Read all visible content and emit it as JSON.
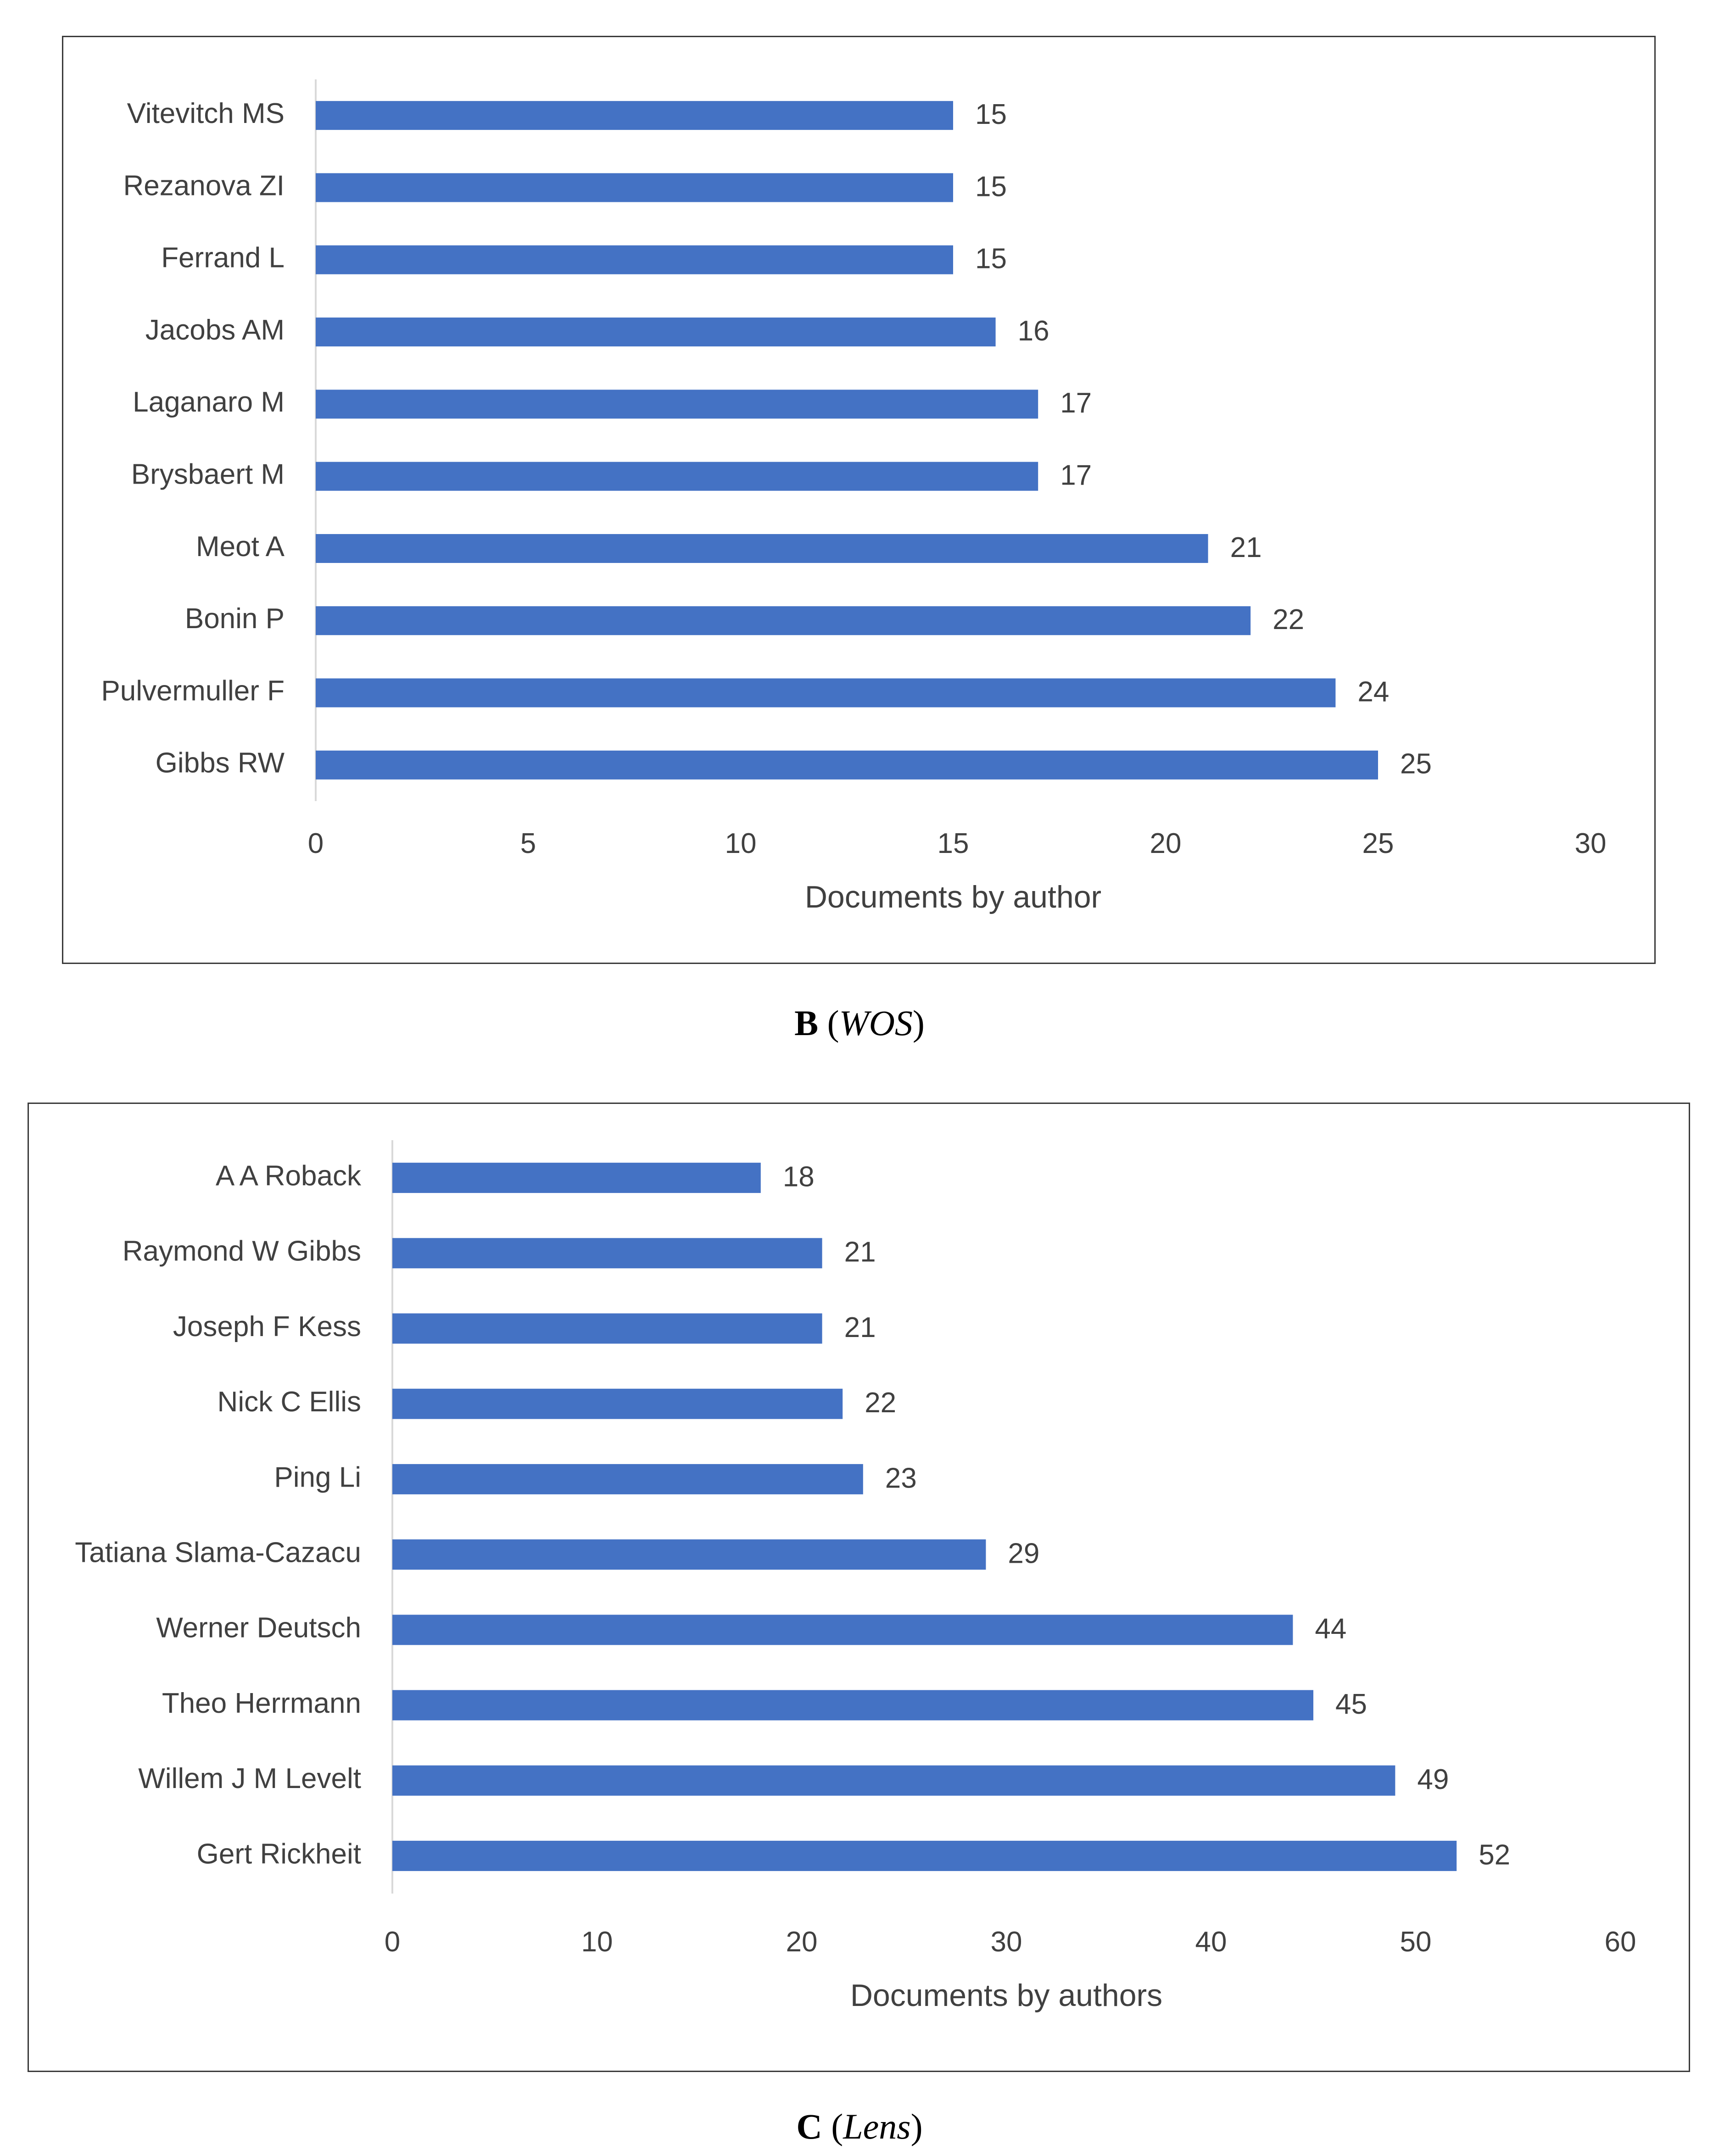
{
  "chart_data": [
    {
      "type": "bar",
      "orientation": "horizontal",
      "categories": [
        "Vitevitch MS",
        "Rezanova ZI",
        "Ferrand L",
        "Jacobs AM",
        "Laganaro M",
        "Brysbaert M",
        "Meot A",
        "Bonin P",
        "Pulvermuller F",
        "Gibbs RW"
      ],
      "values": [
        15,
        15,
        15,
        16,
        17,
        17,
        21,
        22,
        24,
        25
      ],
      "xlabel": "Documents by author",
      "xlim": [
        0,
        30
      ],
      "xticks": [
        0,
        5,
        10,
        15,
        20,
        25,
        30
      ],
      "grid": false,
      "bar_color": "#4472c4",
      "caption_letter": "B",
      "caption_source": "WOS"
    },
    {
      "type": "bar",
      "orientation": "horizontal",
      "categories": [
        "A A Roback",
        "Raymond W Gibbs",
        "Joseph F Kess",
        "Nick C Ellis",
        "Ping Li",
        "Tatiana Slama-Cazacu",
        "Werner Deutsch",
        "Theo Herrmann",
        "Willem J M Levelt",
        "Gert Rickheit"
      ],
      "values": [
        18,
        21,
        21,
        22,
        23,
        29,
        44,
        45,
        49,
        52
      ],
      "xlabel": "Documents by authors",
      "xlim": [
        0,
        60
      ],
      "xticks": [
        0,
        10,
        20,
        30,
        40,
        50,
        60
      ],
      "grid": false,
      "bar_color": "#4472c4",
      "caption_letter": "C",
      "caption_source": "Lens"
    }
  ]
}
